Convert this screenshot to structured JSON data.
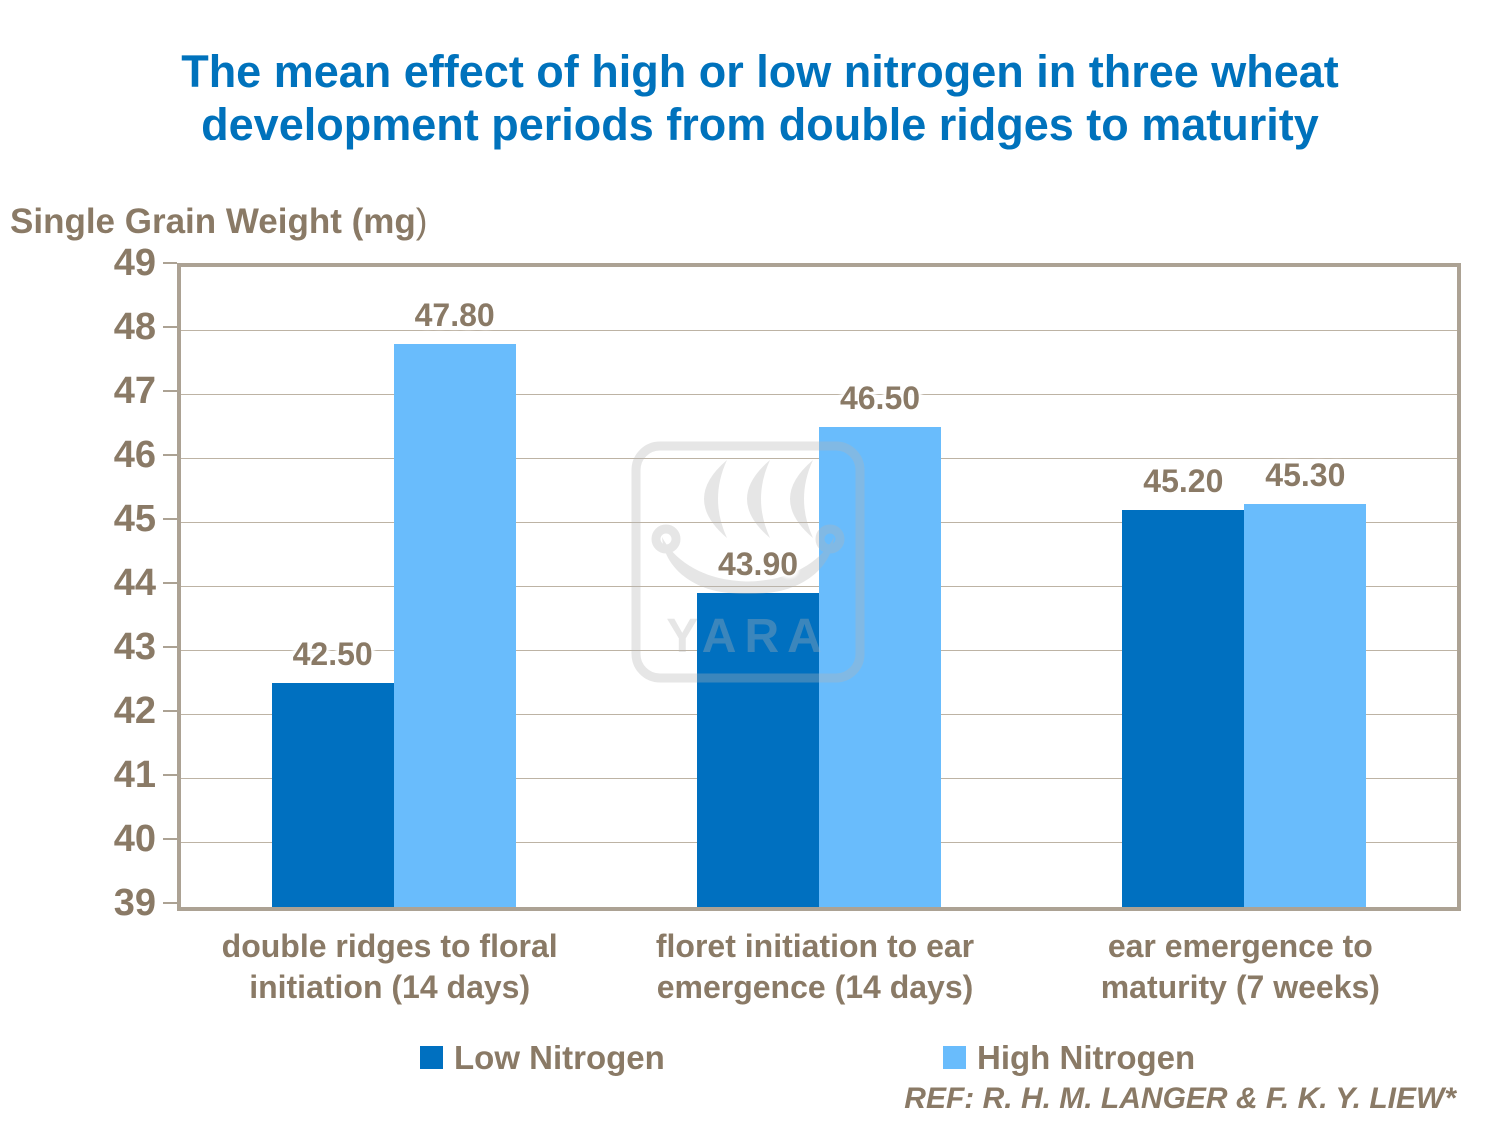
{
  "chart_data": {
    "type": "bar",
    "title": "The mean effect of high or low nitrogen in three wheat development periods from double ridges to maturity",
    "ylabel": "Single Grain Weight (mg)",
    "ylabel_parts": [
      "Single Grain Weight (mg",
      ")"
    ],
    "categories": [
      "double ridges to floral initiation (14 days)",
      "floret initiation to ear emergence (14 days)",
      "ear emergence to maturity (7 weeks)"
    ],
    "category_lines": [
      [
        "double ridges to floral",
        "initiation (14 days)"
      ],
      [
        "floret initiation to ear",
        "emergence (14 days)"
      ],
      [
        "ear emergence to",
        "maturity (7 weeks)"
      ]
    ],
    "series": [
      {
        "name": "Low Nitrogen",
        "color": "#0070C0",
        "values": [
          42.5,
          43.9,
          45.2
        ]
      },
      {
        "name": "High Nitrogen",
        "color": "#69BCFC",
        "values": [
          47.8,
          46.5,
          45.3
        ]
      }
    ],
    "value_labels": [
      [
        "42.50",
        "43.90",
        "45.20"
      ],
      [
        "47.80",
        "46.50",
        "45.30"
      ]
    ],
    "ylim": [
      39,
      49
    ],
    "ytick_step": 1,
    "grid": true,
    "legend_position": "bottom"
  },
  "reference": {
    "text": "REF: R. H. M. LANGER & F. K. Y. LIEW*"
  },
  "watermark": {
    "text": "YARA"
  },
  "theme": {
    "title_color": "#0072BC",
    "axis_text_color": "#8A7A66",
    "plot_border_color": "#ACA294",
    "gridline_color": "#BDB3A4",
    "watermark_color": "#B4B4B4",
    "background": "#FFFFFF",
    "bar_low_color": "#0070C0",
    "bar_high_color": "#69BCFC"
  }
}
